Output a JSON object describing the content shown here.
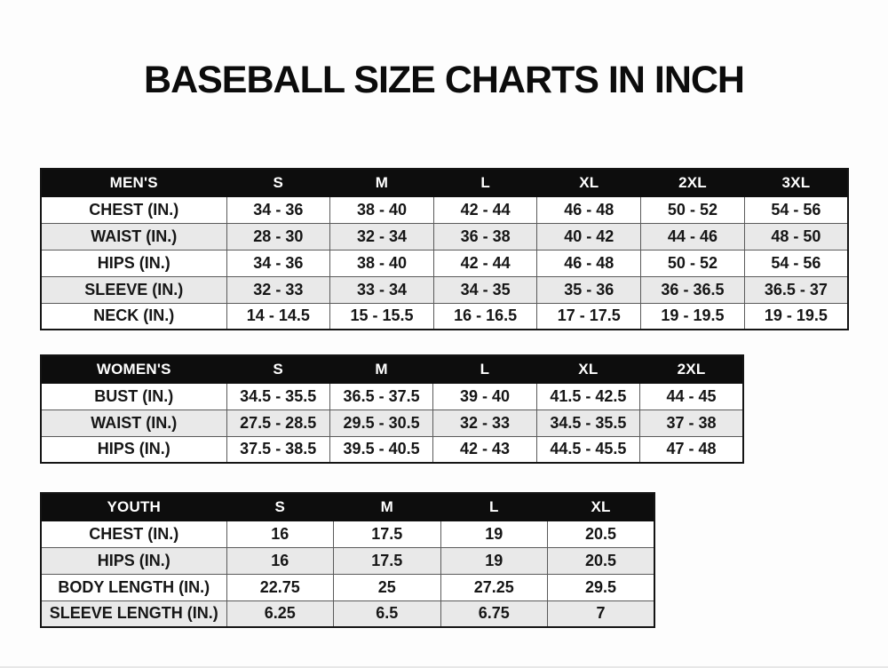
{
  "page": {
    "title": "BASEBALL SIZE CHARTS IN INCH"
  },
  "colors": {
    "header_bg": "#0d0d0d",
    "header_text": "#ffffff",
    "stripe": "#e9e9e9",
    "border": "#5a5a5a",
    "text": "#161616"
  },
  "tables": [
    {
      "name": "mens-size-table",
      "header": [
        "MEN'S",
        "S",
        "M",
        "L",
        "XL",
        "2XL",
        "3XL"
      ],
      "rows": [
        [
          "CHEST (IN.)",
          "34 - 36",
          "38 - 40",
          "42 - 44",
          "46 - 48",
          "50 - 52",
          "54 - 56"
        ],
        [
          "WAIST (IN.)",
          "28 - 30",
          "32 - 34",
          "36 - 38",
          "40 - 42",
          "44 - 46",
          "48 - 50"
        ],
        [
          "HIPS (IN.)",
          "34 - 36",
          "38 - 40",
          "42 - 44",
          "46 - 48",
          "50 - 52",
          "54 - 56"
        ],
        [
          "SLEEVE (IN.)",
          "32 - 33",
          "33 - 34",
          "34 - 35",
          "35 - 36",
          "36 - 36.5",
          "36.5 - 37"
        ],
        [
          "NECK (IN.)",
          "14 - 14.5",
          "15 - 15.5",
          "16 - 16.5",
          "17 - 17.5",
          "19 - 19.5",
          "19 - 19.5"
        ]
      ]
    },
    {
      "name": "womens-size-table",
      "header": [
        "WOMEN'S",
        "S",
        "M",
        "L",
        "XL",
        "2XL"
      ],
      "rows": [
        [
          "BUST (IN.)",
          "34.5 - 35.5",
          "36.5 - 37.5",
          "39 - 40",
          "41.5 - 42.5",
          "44 - 45"
        ],
        [
          "WAIST (IN.)",
          "27.5 - 28.5",
          "29.5 - 30.5",
          "32 - 33",
          "34.5 - 35.5",
          "37 - 38"
        ],
        [
          "HIPS (IN.)",
          "37.5 - 38.5",
          "39.5 - 40.5",
          "42 - 43",
          "44.5 - 45.5",
          "47 - 48"
        ]
      ]
    },
    {
      "name": "youth-size-table",
      "header": [
        "YOUTH",
        "S",
        "M",
        "L",
        "XL"
      ],
      "rows": [
        [
          "CHEST (IN.)",
          "16",
          "17.5",
          "19",
          "20.5"
        ],
        [
          "HIPS (IN.)",
          "16",
          "17.5",
          "19",
          "20.5"
        ],
        [
          "BODY LENGTH (IN.)",
          "22.75",
          "25",
          "27.25",
          "29.5"
        ],
        [
          "SLEEVE LENGTH (IN.)",
          "6.25",
          "6.5",
          "6.75",
          "7"
        ]
      ]
    }
  ]
}
